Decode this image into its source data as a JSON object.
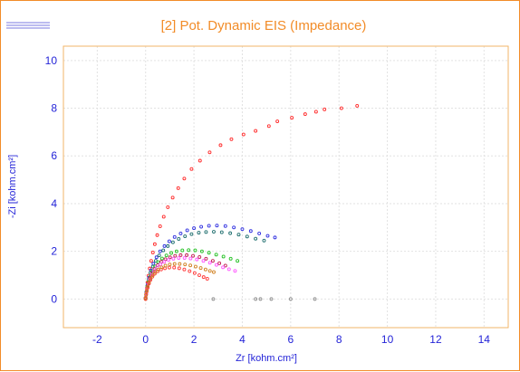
{
  "window": {
    "title": "[2] Pot. Dynamic EIS (Impedance)"
  },
  "chart_data": {
    "type": "scatter",
    "title": "[2] Pot. Dynamic EIS (Impedance)",
    "xlabel": "Zr [kohm.cm²]",
    "ylabel": "-Zi [kohm.cm²]",
    "xlim": [
      -3.4,
      15.0
    ],
    "ylim": [
      -1.2,
      10.6
    ],
    "xticks": [
      "-2",
      "0",
      "2",
      "4",
      "6",
      "8",
      "10",
      "12",
      "14"
    ],
    "yticks": [
      "0",
      "2",
      "4",
      "6",
      "8",
      "10"
    ],
    "grid": true,
    "colors": {
      "frame": "#f28c28",
      "title": "#f28c28",
      "axis": "#f2b66a",
      "tick_labels": "#2424d8",
      "grid": "#e2e2e2"
    },
    "series": [
      {
        "color": "#ff2a2a",
        "x": [
          0.0,
          0.02,
          0.05,
          0.08,
          0.12,
          0.17,
          0.23,
          0.3,
          0.38,
          0.48,
          0.6,
          0.75,
          0.92,
          1.12,
          1.35,
          1.6,
          1.9,
          2.25,
          2.65,
          3.1,
          3.55,
          4.05,
          4.55,
          5.1,
          5.45,
          6.05,
          6.6,
          7.05,
          7.4,
          8.1,
          8.75
        ],
        "y": [
          0.0,
          0.2,
          0.45,
          0.7,
          0.98,
          1.28,
          1.6,
          1.95,
          2.3,
          2.68,
          3.05,
          3.45,
          3.85,
          4.25,
          4.65,
          5.05,
          5.45,
          5.8,
          6.15,
          6.45,
          6.7,
          6.9,
          7.05,
          7.25,
          7.45,
          7.6,
          7.75,
          7.85,
          7.95,
          8.0,
          8.1
        ]
      },
      {
        "color": "#3030e0",
        "x": [
          0.0,
          0.03,
          0.08,
          0.14,
          0.22,
          0.32,
          0.45,
          0.6,
          0.78,
          0.98,
          1.2,
          1.45,
          1.72,
          2.0,
          2.3,
          2.62,
          2.95,
          3.3,
          3.65,
          4.0,
          4.35,
          4.7,
          5.05,
          5.35
        ],
        "y": [
          0.05,
          0.3,
          0.6,
          0.9,
          1.2,
          1.48,
          1.75,
          2.0,
          2.22,
          2.42,
          2.6,
          2.75,
          2.88,
          2.97,
          3.03,
          3.07,
          3.08,
          3.06,
          3.0,
          2.93,
          2.85,
          2.75,
          2.65,
          2.58
        ]
      },
      {
        "color": "#1e6e6e",
        "x": [
          0.0,
          0.03,
          0.07,
          0.13,
          0.2,
          0.3,
          0.42,
          0.56,
          0.73,
          0.92,
          1.13,
          1.37,
          1.63,
          1.9,
          2.2,
          2.5,
          2.82,
          3.15,
          3.5,
          3.85,
          4.2,
          4.55,
          4.9
        ],
        "y": [
          0.05,
          0.28,
          0.55,
          0.82,
          1.1,
          1.36,
          1.6,
          1.83,
          2.04,
          2.22,
          2.38,
          2.52,
          2.63,
          2.72,
          2.78,
          2.81,
          2.82,
          2.8,
          2.76,
          2.7,
          2.62,
          2.53,
          2.45
        ]
      },
      {
        "color": "#22c022",
        "x": [
          0.0,
          0.03,
          0.07,
          0.12,
          0.19,
          0.28,
          0.39,
          0.52,
          0.68,
          0.86,
          1.06,
          1.28,
          1.52,
          1.78,
          2.05,
          2.33,
          2.62,
          2.92,
          3.22,
          3.52,
          3.8
        ],
        "y": [
          0.05,
          0.25,
          0.48,
          0.72,
          0.95,
          1.17,
          1.37,
          1.55,
          1.7,
          1.83,
          1.93,
          2.0,
          2.04,
          2.05,
          2.04,
          2.0,
          1.94,
          1.86,
          1.78,
          1.69,
          1.6
        ]
      },
      {
        "color": "#c02050",
        "x": [
          0.0,
          0.03,
          0.07,
          0.12,
          0.18,
          0.27,
          0.37,
          0.5,
          0.65,
          0.82,
          1.01,
          1.22,
          1.45,
          1.7,
          1.96,
          2.23,
          2.5,
          2.78,
          3.05,
          3.3
        ],
        "y": [
          0.05,
          0.24,
          0.45,
          0.67,
          0.88,
          1.08,
          1.26,
          1.42,
          1.56,
          1.67,
          1.75,
          1.81,
          1.84,
          1.84,
          1.81,
          1.76,
          1.69,
          1.6,
          1.5,
          1.4
        ]
      },
      {
        "color": "#ff55ff",
        "x": [
          0.0,
          0.03,
          0.06,
          0.11,
          0.17,
          0.25,
          0.35,
          0.47,
          0.61,
          0.77,
          0.95,
          1.15,
          1.37,
          1.61,
          1.86,
          2.12,
          2.39,
          2.66,
          2.93,
          3.2,
          3.45,
          3.7
        ],
        "y": [
          0.04,
          0.22,
          0.42,
          0.62,
          0.82,
          1.01,
          1.18,
          1.33,
          1.46,
          1.56,
          1.64,
          1.69,
          1.72,
          1.72,
          1.7,
          1.66,
          1.6,
          1.52,
          1.43,
          1.33,
          1.25,
          1.18
        ]
      },
      {
        "color": "#ff3a3a",
        "x": [
          0.0,
          0.02,
          0.05,
          0.09,
          0.14,
          0.2,
          0.28,
          0.38,
          0.5,
          0.64,
          0.8,
          0.98,
          1.18,
          1.39,
          1.6,
          1.82,
          2.03,
          2.22,
          2.4,
          2.55
        ],
        "y": [
          0.03,
          0.17,
          0.33,
          0.49,
          0.65,
          0.8,
          0.94,
          1.06,
          1.16,
          1.24,
          1.29,
          1.32,
          1.32,
          1.29,
          1.24,
          1.17,
          1.09,
          1.0,
          0.92,
          0.85
        ]
      },
      {
        "color": "#d08020",
        "x": [
          0.0,
          0.02,
          0.05,
          0.09,
          0.14,
          0.21,
          0.3,
          0.4,
          0.52,
          0.66,
          0.82,
          1.0,
          1.2,
          1.41,
          1.63,
          1.85,
          2.07,
          2.28,
          2.48,
          2.66,
          2.82
        ],
        "y": [
          0.03,
          0.19,
          0.36,
          0.53,
          0.7,
          0.86,
          1.0,
          1.13,
          1.24,
          1.33,
          1.4,
          1.45,
          1.47,
          1.47,
          1.45,
          1.41,
          1.36,
          1.3,
          1.24,
          1.18,
          1.13
        ]
      },
      {
        "color": "#909090",
        "x": [
          2.8,
          4.55,
          4.75,
          5.2,
          6.0,
          7.0
        ],
        "y": [
          0.0,
          0.0,
          0.0,
          0.0,
          0.0,
          0.0
        ]
      }
    ]
  }
}
